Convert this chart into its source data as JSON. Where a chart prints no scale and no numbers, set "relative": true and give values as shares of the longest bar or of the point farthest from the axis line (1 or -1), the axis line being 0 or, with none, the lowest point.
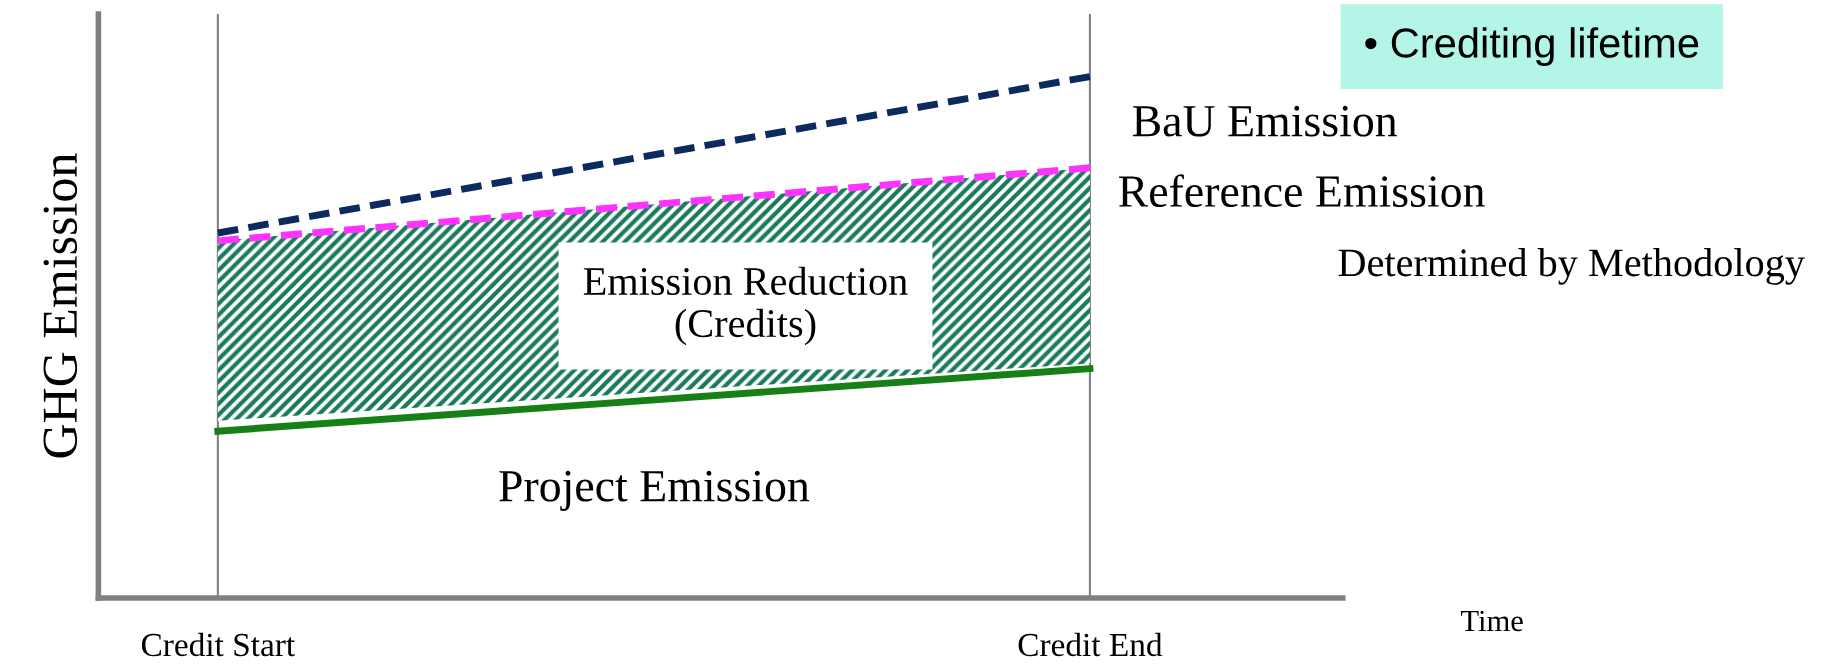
{
  "chart_data": {
    "type": "line",
    "relative": true,
    "ylabel": "GHG Emission",
    "xlabel": "Time",
    "categories": [
      "Credit Start",
      "Credit End"
    ],
    "grid": "x",
    "marker": "none",
    "series": [
      {
        "name": "BaU Emission",
        "color": "#0d2a5e",
        "line_style": "dashed",
        "values": [
          0.7,
          1.0
        ]
      },
      {
        "name": "Reference Emission",
        "color": "#ff33ff",
        "line_style": "dashed",
        "values": [
          0.685,
          0.825
        ],
        "lower": [
          0.34,
          0.45
        ],
        "upper": [
          0.685,
          0.825
        ]
      },
      {
        "name": "Project Emission",
        "color": "#168016",
        "line_style": "solid",
        "values": [
          0.32,
          0.44
        ]
      }
    ],
    "annotations": [
      "Emission Reduction\n(Credits)",
      "Determined by Methodology",
      "• Crediting lifetime"
    ]
  }
}
